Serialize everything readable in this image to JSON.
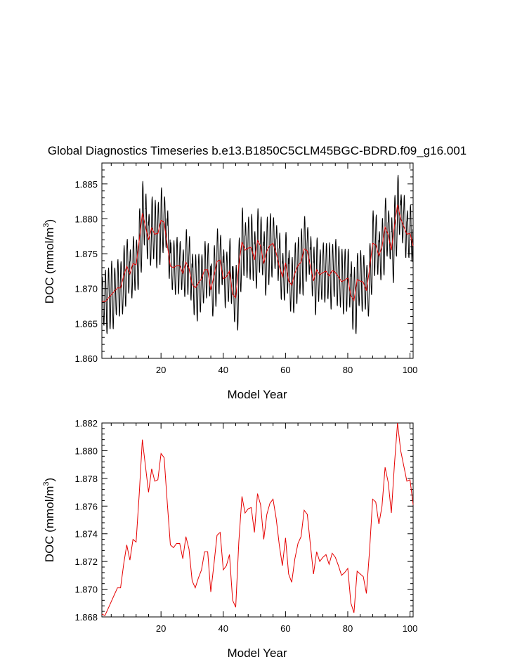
{
  "title": "Global Diagnostics Timeseries b.e13.B1850C5CLM45BGC-BDRD.f09_g16.001",
  "colors": {
    "monthly": "#000000",
    "annual": "#e60000",
    "background": "#ffffff"
  },
  "chart_data": [
    {
      "type": "line",
      "title": "Global Diagnostics Timeseries b.e13.B1850C5CLM45BGC-BDRD.f09_g16.001",
      "xlabel": "Model Year",
      "ylabel": "DOC (mmol/m",
      "ylabel_sup": "3",
      "ylabel_close": ")",
      "xlim": [
        1,
        101
      ],
      "ylim": [
        1.86,
        1.888
      ],
      "xticks": [
        20,
        40,
        60,
        80,
        100
      ],
      "yticks": [
        1.86,
        1.865,
        1.87,
        1.875,
        1.88,
        1.885
      ],
      "ytick_labels": [
        "1.860",
        "1.865",
        "1.870",
        "1.875",
        "1.880",
        "1.885"
      ],
      "monthly_amplitude": [
        0.0035,
        0.0046,
        0.0044,
        0.0049,
        0.0034,
        0.0041,
        0.0038,
        0.0044,
        0.0039,
        0.0035,
        0.0039,
        0.0036,
        0.0046,
        0.0046,
        0.0047,
        0.0037,
        0.0045,
        0.0049,
        0.0045,
        0.0047,
        0.0037,
        0.0049,
        0.0034,
        0.0039,
        0.0041,
        0.0035,
        0.0034,
        0.0047,
        0.0046,
        0.0044,
        0.0048,
        0.0042,
        0.0035,
        0.0041,
        0.0038,
        0.0038,
        0.0044,
        0.0047,
        0.0036,
        0.0042,
        0.0036,
        0.0047,
        0.004,
        0.0047,
        0.0039,
        0.0049,
        0.004,
        0.0045,
        0.0048,
        0.0041,
        0.0046,
        0.0042,
        0.0046,
        0.0049,
        0.0046,
        0.0037,
        0.004,
        0.0048,
        0.0034,
        0.0044,
        0.0044,
        0.004,
        0.0044,
        0.0041,
        0.0048,
        0.0047,
        0.0034,
        0.0043,
        0.0049,
        0.0046,
        0.0036,
        0.0043,
        0.004,
        0.0048,
        0.0038,
        0.0048,
        0.0044,
        0.0047,
        0.0045,
        0.0042,
        0.0049,
        0.0048,
        0.0038,
        0.0044,
        0.0039,
        0.0037,
        0.0037,
        0.0047,
        0.0043,
        0.0035,
        0.0041,
        0.0042,
        0.0035,
        0.0047,
        0.0044,
        0.0043,
        0.0035,
        0.0045,
        0.0034,
        0.0041
      ],
      "series": [
        {
          "kind": "monthly",
          "color": "#000000"
        },
        {
          "kind": "annual",
          "color": "#e60000"
        }
      ]
    },
    {
      "type": "line",
      "xlabel": "Model Year",
      "ylabel": "DOC (mmol/m",
      "ylabel_sup": "3",
      "ylabel_close": ")",
      "xlim": [
        1,
        101
      ],
      "ylim": [
        1.868,
        1.882
      ],
      "xticks": [
        20,
        40,
        60,
        80,
        100
      ],
      "yticks": [
        1.868,
        1.87,
        1.872,
        1.874,
        1.876,
        1.878,
        1.88,
        1.882
      ],
      "ytick_labels": [
        "1.868",
        "1.870",
        "1.872",
        "1.874",
        "1.876",
        "1.878",
        "1.880",
        "1.882"
      ],
      "x": [
        1,
        2,
        3,
        4,
        5,
        6,
        7,
        8,
        9,
        10,
        11,
        12,
        13,
        14,
        15,
        16,
        17,
        18,
        19,
        20,
        21,
        22,
        23,
        24,
        25,
        26,
        27,
        28,
        29,
        30,
        31,
        32,
        33,
        34,
        35,
        36,
        37,
        38,
        39,
        40,
        41,
        42,
        43,
        44,
        45,
        46,
        47,
        48,
        49,
        50,
        51,
        52,
        53,
        54,
        55,
        56,
        57,
        58,
        59,
        60,
        61,
        62,
        63,
        64,
        65,
        66,
        67,
        68,
        69,
        70,
        71,
        72,
        73,
        74,
        75,
        76,
        77,
        78,
        79,
        80,
        81,
        82,
        83,
        84,
        85,
        86,
        87,
        88,
        89,
        90,
        91,
        92,
        93,
        94,
        95,
        96,
        97,
        98,
        99,
        100,
        101
      ],
      "values": [
        1.8682,
        1.8681,
        1.8686,
        1.8691,
        1.8696,
        1.8701,
        1.8701,
        1.8718,
        1.8732,
        1.8721,
        1.8736,
        1.8734,
        1.8769,
        1.8808,
        1.8789,
        1.877,
        1.8787,
        1.8778,
        1.8779,
        1.8798,
        1.8795,
        1.8763,
        1.8732,
        1.873,
        1.8733,
        1.8733,
        1.8722,
        1.8738,
        1.8729,
        1.8706,
        1.8701,
        1.8708,
        1.8714,
        1.8727,
        1.8727,
        1.8698,
        1.8718,
        1.8739,
        1.8741,
        1.8714,
        1.8717,
        1.8725,
        1.8692,
        1.8687,
        1.8734,
        1.8767,
        1.8755,
        1.8758,
        1.8759,
        1.8741,
        1.8769,
        1.8761,
        1.8736,
        1.8754,
        1.8762,
        1.8765,
        1.8751,
        1.8732,
        1.8717,
        1.8737,
        1.8711,
        1.8705,
        1.8722,
        1.8733,
        1.8738,
        1.8757,
        1.8754,
        1.8732,
        1.8711,
        1.8727,
        1.872,
        1.8723,
        1.8725,
        1.8718,
        1.8726,
        1.8723,
        1.8717,
        1.871,
        1.8712,
        1.8715,
        1.869,
        1.8683,
        1.8713,
        1.8711,
        1.8709,
        1.8697,
        1.8728,
        1.8765,
        1.8763,
        1.8747,
        1.876,
        1.8788,
        1.8777,
        1.8755,
        1.879,
        1.882,
        1.88,
        1.8789,
        1.8778,
        1.8779,
        1.8761
      ],
      "series": [
        {
          "kind": "annual",
          "color": "#e60000"
        }
      ]
    }
  ]
}
